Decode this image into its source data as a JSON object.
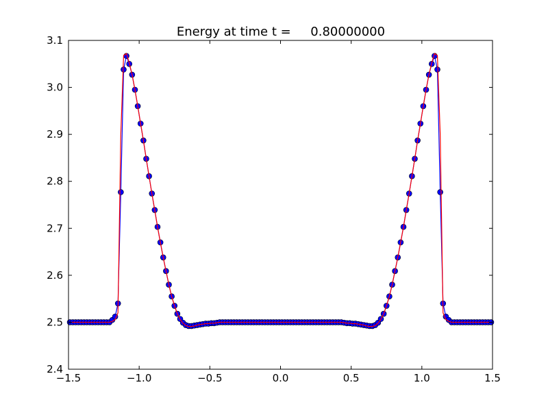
{
  "chart_data": {
    "type": "line",
    "title": "Energy at time t =     0.80000000",
    "x": [
      -1.49,
      -1.47,
      -1.45,
      -1.43,
      -1.41,
      -1.39,
      -1.37,
      -1.35,
      -1.33,
      -1.31,
      -1.29,
      -1.27,
      -1.25,
      -1.23,
      -1.21,
      -1.19,
      -1.17,
      -1.15,
      -1.13,
      -1.11,
      -1.09,
      -1.07,
      -1.05,
      -1.03,
      -1.01,
      -0.99,
      -0.97,
      -0.95,
      -0.93,
      -0.91,
      -0.89,
      -0.87,
      -0.85,
      -0.83,
      -0.81,
      -0.79,
      -0.77,
      -0.75,
      -0.73,
      -0.71,
      -0.69,
      -0.67,
      -0.65,
      -0.63,
      -0.61,
      -0.59,
      -0.57,
      -0.55,
      -0.53,
      -0.51,
      -0.49,
      -0.47,
      -0.45,
      -0.43,
      -0.41,
      -0.39,
      -0.37,
      -0.35,
      -0.33,
      -0.31,
      -0.29,
      -0.27,
      -0.25,
      -0.23,
      -0.21,
      -0.19,
      -0.17,
      -0.15,
      -0.13,
      -0.11,
      -0.09,
      -0.07,
      -0.05,
      -0.03,
      -0.01,
      0.01,
      0.03,
      0.05,
      0.07,
      0.09,
      0.11,
      0.13,
      0.15,
      0.17,
      0.19,
      0.21,
      0.23,
      0.25,
      0.27,
      0.29,
      0.31,
      0.33,
      0.35,
      0.37,
      0.39,
      0.41,
      0.43,
      0.45,
      0.47,
      0.49,
      0.51,
      0.53,
      0.55,
      0.57,
      0.59,
      0.61,
      0.63,
      0.65,
      0.67,
      0.69,
      0.71,
      0.73,
      0.75,
      0.77,
      0.79,
      0.81,
      0.83,
      0.85,
      0.87,
      0.89,
      0.91,
      0.93,
      0.95,
      0.97,
      0.99,
      1.01,
      1.03,
      1.05,
      1.07,
      1.09,
      1.11,
      1.13,
      1.15,
      1.17,
      1.19,
      1.21,
      1.23,
      1.25,
      1.27,
      1.29,
      1.31,
      1.33,
      1.35,
      1.37,
      1.39,
      1.41,
      1.43,
      1.45,
      1.47,
      1.49
    ],
    "series": [
      {
        "color": "#0000ff",
        "markers": true,
        "values": [
          2.5,
          2.5,
          2.5,
          2.5,
          2.5,
          2.5,
          2.5,
          2.5,
          2.5,
          2.5,
          2.5,
          2.5,
          2.5,
          2.5,
          2.5,
          2.505,
          2.512,
          2.54,
          2.777,
          3.038,
          3.067,
          3.05,
          3.027,
          2.995,
          2.96,
          2.923,
          2.887,
          2.848,
          2.811,
          2.774,
          2.739,
          2.703,
          2.67,
          2.638,
          2.609,
          2.58,
          2.555,
          2.535,
          2.518,
          2.507,
          2.499,
          2.494,
          2.492,
          2.492,
          2.493,
          2.494,
          2.495,
          2.496,
          2.497,
          2.497,
          2.498,
          2.498,
          2.499,
          2.5,
          2.5,
          2.5,
          2.5,
          2.5,
          2.5,
          2.5,
          2.5,
          2.5,
          2.5,
          2.5,
          2.5,
          2.5,
          2.5,
          2.5,
          2.5,
          2.5,
          2.5,
          2.5,
          2.5,
          2.5,
          2.5,
          2.5,
          2.5,
          2.5,
          2.5,
          2.5,
          2.5,
          2.5,
          2.5,
          2.5,
          2.5,
          2.5,
          2.5,
          2.5,
          2.5,
          2.5,
          2.5,
          2.5,
          2.5,
          2.5,
          2.5,
          2.5,
          2.5,
          2.499,
          2.498,
          2.498,
          2.497,
          2.497,
          2.496,
          2.495,
          2.494,
          2.493,
          2.492,
          2.492,
          2.494,
          2.499,
          2.507,
          2.518,
          2.535,
          2.555,
          2.58,
          2.609,
          2.638,
          2.67,
          2.703,
          2.739,
          2.774,
          2.811,
          2.848,
          2.887,
          2.923,
          2.96,
          2.995,
          3.027,
          3.05,
          3.067,
          3.038,
          2.777,
          2.54,
          2.512,
          2.505,
          2.5,
          2.5,
          2.5,
          2.5,
          2.5,
          2.5,
          2.5,
          2.5,
          2.5,
          2.5,
          2.5,
          2.5,
          2.5,
          2.5,
          2.5
        ]
      },
      {
        "color": "#ff0000",
        "markers": false,
        "values": [
          2.5,
          2.5,
          2.5,
          2.5,
          2.5,
          2.5,
          2.5,
          2.5,
          2.5,
          2.5,
          2.5,
          2.5,
          2.5,
          2.5,
          2.5,
          2.502,
          2.506,
          2.52,
          2.9,
          3.068,
          3.072,
          3.052,
          3.027,
          2.995,
          2.96,
          2.923,
          2.887,
          2.848,
          2.811,
          2.774,
          2.739,
          2.703,
          2.67,
          2.638,
          2.609,
          2.58,
          2.555,
          2.535,
          2.518,
          2.506,
          2.498,
          2.493,
          2.491,
          2.491,
          2.492,
          2.494,
          2.495,
          2.496,
          2.497,
          2.497,
          2.498,
          2.498,
          2.499,
          2.5,
          2.5,
          2.5,
          2.5,
          2.5,
          2.5,
          2.5,
          2.5,
          2.5,
          2.5,
          2.5,
          2.5,
          2.5,
          2.5,
          2.5,
          2.5,
          2.5,
          2.5,
          2.5,
          2.5,
          2.5,
          2.5,
          2.5,
          2.5,
          2.5,
          2.5,
          2.5,
          2.5,
          2.5,
          2.5,
          2.5,
          2.5,
          2.5,
          2.5,
          2.5,
          2.5,
          2.5,
          2.5,
          2.5,
          2.5,
          2.5,
          2.5,
          2.5,
          2.5,
          2.499,
          2.498,
          2.498,
          2.497,
          2.497,
          2.496,
          2.495,
          2.494,
          2.492,
          2.491,
          2.491,
          2.493,
          2.498,
          2.506,
          2.518,
          2.535,
          2.555,
          2.58,
          2.609,
          2.638,
          2.67,
          2.703,
          2.739,
          2.774,
          2.811,
          2.848,
          2.887,
          2.923,
          2.96,
          2.995,
          3.027,
          3.052,
          3.072,
          3.068,
          2.9,
          2.52,
          2.506,
          2.502,
          2.5,
          2.5,
          2.5,
          2.5,
          2.5,
          2.5,
          2.5,
          2.5,
          2.5,
          2.5,
          2.5,
          2.5,
          2.5,
          2.5,
          2.5
        ]
      }
    ],
    "xlim": [
      -1.5,
      1.5
    ],
    "ylim": [
      2.4,
      3.1
    ],
    "xticks": [
      {
        "value": -1.5,
        "label": "−1.5"
      },
      {
        "value": -1.0,
        "label": "−1.0"
      },
      {
        "value": -0.5,
        "label": "−0.5"
      },
      {
        "value": 0,
        "label": "0.0"
      },
      0.5,
      {
        "value": 1,
        "label": "1.0"
      },
      1.5
    ],
    "yticks": [
      2.4,
      2.5,
      2.6,
      2.7,
      2.8,
      2.9,
      {
        "value": 3,
        "label": "3.0"
      },
      3.1
    ],
    "grid": false
  }
}
